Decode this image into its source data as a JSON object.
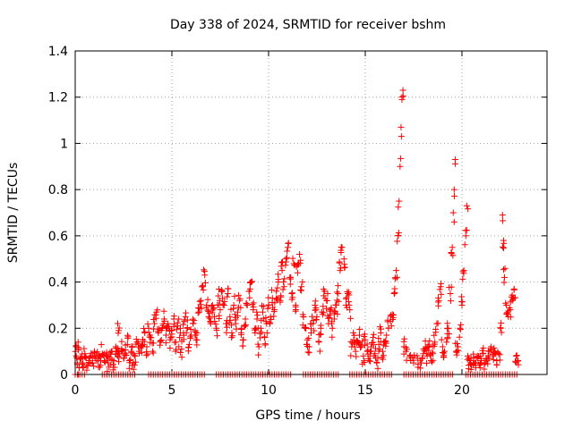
{
  "chart_data": {
    "type": "scatter",
    "title": "Day 338 of 2024, SRMTID for receiver bshm",
    "xlabel": "GPS time / hours",
    "ylabel": "SRMTID / TECUs",
    "xlim": [
      0,
      24.4
    ],
    "ylim": [
      0,
      1.4
    ],
    "xticks": [
      0,
      5,
      10,
      15,
      20
    ],
    "xtick_labels": [
      "0",
      "5",
      "10",
      "15",
      "20"
    ],
    "yticks": [
      0,
      0.2,
      0.4,
      0.6,
      0.8,
      1.0,
      1.2,
      1.4
    ],
    "ytick_labels": [
      "0",
      "0.2",
      "0.4",
      "0.6",
      "0.8",
      "1",
      "1.2",
      "1.4"
    ],
    "grid": true,
    "marker": "+",
    "color": "#ff0000",
    "series": [
      {
        "name": "SRMTID",
        "points": [
          [
            0.05,
            0.12
          ],
          [
            0.1,
            0.05
          ],
          [
            0.15,
            0.14
          ],
          [
            0.2,
            0.03
          ],
          [
            0.3,
            0.07
          ],
          [
            0.4,
            0.05
          ],
          [
            0.5,
            0.09
          ],
          [
            0.6,
            0.04
          ],
          [
            0.7,
            0.06
          ],
          [
            0.8,
            0.08
          ],
          [
            0.9,
            0.05
          ],
          [
            1.0,
            0.1
          ],
          [
            1.1,
            0.06
          ],
          [
            1.2,
            0.07
          ],
          [
            1.3,
            0.04
          ],
          [
            1.4,
            0.09
          ],
          [
            1.5,
            0.06
          ],
          [
            1.6,
            0.08
          ],
          [
            1.7,
            0.05
          ],
          [
            1.8,
            0.07
          ],
          [
            1.9,
            0.1
          ],
          [
            2.0,
            0.06
          ],
          [
            2.1,
            0.12
          ],
          [
            2.2,
            0.08
          ],
          [
            2.25,
            0.19
          ],
          [
            2.3,
            0.09
          ],
          [
            2.4,
            0.11
          ],
          [
            2.5,
            0.07
          ],
          [
            2.6,
            0.09
          ],
          [
            2.7,
            0.13
          ],
          [
            2.8,
            0.06
          ],
          [
            2.9,
            0.1
          ],
          [
            3.0,
            0.05
          ],
          [
            3.1,
            0.08
          ],
          [
            3.2,
            0.14
          ],
          [
            3.3,
            0.1
          ],
          [
            3.4,
            0.12
          ],
          [
            3.5,
            0.15
          ],
          [
            3.6,
            0.18
          ],
          [
            3.7,
            0.12
          ],
          [
            3.8,
            0.2
          ],
          [
            3.9,
            0.16
          ],
          [
            4.0,
            0.1
          ],
          [
            4.1,
            0.22
          ],
          [
            4.2,
            0.27
          ],
          [
            4.3,
            0.18
          ],
          [
            4.4,
            0.14
          ],
          [
            4.5,
            0.2
          ],
          [
            4.6,
            0.24
          ],
          [
            4.7,
            0.17
          ],
          [
            4.8,
            0.22
          ],
          [
            4.9,
            0.15
          ],
          [
            5.0,
            0.19
          ],
          [
            5.1,
            0.24
          ],
          [
            5.2,
            0.14
          ],
          [
            5.3,
            0.21
          ],
          [
            5.4,
            0.16
          ],
          [
            5.5,
            0.11
          ],
          [
            5.6,
            0.18
          ],
          [
            5.7,
            0.25
          ],
          [
            5.8,
            0.2
          ],
          [
            5.9,
            0.13
          ],
          [
            6.0,
            0.17
          ],
          [
            6.1,
            0.22
          ],
          [
            6.2,
            0.19
          ],
          [
            6.3,
            0.15
          ],
          [
            6.4,
            0.27
          ],
          [
            6.5,
            0.32
          ],
          [
            6.6,
            0.38
          ],
          [
            6.7,
            0.43
          ],
          [
            6.8,
            0.3
          ],
          [
            6.9,
            0.25
          ],
          [
            7.0,
            0.22
          ],
          [
            7.1,
            0.3
          ],
          [
            7.2,
            0.25
          ],
          [
            7.3,
            0.2
          ],
          [
            7.4,
            0.34
          ],
          [
            7.5,
            0.28
          ],
          [
            7.6,
            0.36
          ],
          [
            7.7,
            0.3
          ],
          [
            7.8,
            0.22
          ],
          [
            7.9,
            0.35
          ],
          [
            8.0,
            0.25
          ],
          [
            8.1,
            0.18
          ],
          [
            8.2,
            0.3
          ],
          [
            8.3,
            0.22
          ],
          [
            8.4,
            0.27
          ],
          [
            8.5,
            0.32
          ],
          [
            8.6,
            0.2
          ],
          [
            8.7,
            0.15
          ],
          [
            8.8,
            0.24
          ],
          [
            8.9,
            0.3
          ],
          [
            9.0,
            0.36
          ],
          [
            9.1,
            0.4
          ],
          [
            9.2,
            0.28
          ],
          [
            9.3,
            0.18
          ],
          [
            9.4,
            0.24
          ],
          [
            9.5,
            0.12
          ],
          [
            9.6,
            0.2
          ],
          [
            9.7,
            0.27
          ],
          [
            9.8,
            0.16
          ],
          [
            9.9,
            0.22
          ],
          [
            10.0,
            0.3
          ],
          [
            10.1,
            0.25
          ],
          [
            10.2,
            0.33
          ],
          [
            10.3,
            0.28
          ],
          [
            10.4,
            0.36
          ],
          [
            10.5,
            0.4
          ],
          [
            10.6,
            0.32
          ],
          [
            10.7,
            0.45
          ],
          [
            10.8,
            0.38
          ],
          [
            10.9,
            0.5
          ],
          [
            11.0,
            0.55
          ],
          [
            11.1,
            0.42
          ],
          [
            11.2,
            0.35
          ],
          [
            11.3,
            0.48
          ],
          [
            11.4,
            0.3
          ],
          [
            11.5,
            0.44
          ],
          [
            11.6,
            0.52
          ],
          [
            11.7,
            0.38
          ],
          [
            11.8,
            0.25
          ],
          [
            11.9,
            0.2
          ],
          [
            12.0,
            0.15
          ],
          [
            12.1,
            0.12
          ],
          [
            12.2,
            0.18
          ],
          [
            12.3,
            0.22
          ],
          [
            12.4,
            0.3
          ],
          [
            12.5,
            0.25
          ],
          [
            12.6,
            0.14
          ],
          [
            12.7,
            0.2
          ],
          [
            12.8,
            0.26
          ],
          [
            12.9,
            0.36
          ],
          [
            13.0,
            0.32
          ],
          [
            13.1,
            0.22
          ],
          [
            13.2,
            0.28
          ],
          [
            13.3,
            0.2
          ],
          [
            13.4,
            0.24
          ],
          [
            13.5,
            0.3
          ],
          [
            13.6,
            0.35
          ],
          [
            13.7,
            0.45
          ],
          [
            13.8,
            0.55
          ],
          [
            13.9,
            0.5
          ],
          [
            14.0,
            0.3
          ],
          [
            14.1,
            0.35
          ],
          [
            14.2,
            0.28
          ],
          [
            14.3,
            0.12
          ],
          [
            14.4,
            0.15
          ],
          [
            14.5,
            0.1
          ],
          [
            14.6,
            0.14
          ],
          [
            14.7,
            0.17
          ],
          [
            14.8,
            0.12
          ],
          [
            14.9,
            0.08
          ],
          [
            15.0,
            0.15
          ],
          [
            15.1,
            0.1
          ],
          [
            15.2,
            0.06
          ],
          [
            15.3,
            0.12
          ],
          [
            15.4,
            0.16
          ],
          [
            15.5,
            0.09
          ],
          [
            15.6,
            0.05
          ],
          [
            15.7,
            0.13
          ],
          [
            15.8,
            0.18
          ],
          [
            15.9,
            0.1
          ],
          [
            16.0,
            0.14
          ],
          [
            16.1,
            0.17
          ],
          [
            16.2,
            0.2
          ],
          [
            16.3,
            0.23
          ],
          [
            16.4,
            0.26
          ],
          [
            16.5,
            0.35
          ],
          [
            16.6,
            0.45
          ],
          [
            16.7,
            0.6
          ],
          [
            16.75,
            0.75
          ],
          [
            16.8,
            0.9
          ],
          [
            16.85,
            1.07
          ],
          [
            16.9,
            1.2
          ],
          [
            16.95,
            1.23
          ],
          [
            17.0,
            0.12
          ],
          [
            17.1,
            0.1
          ],
          [
            17.3,
            0.08
          ],
          [
            17.5,
            0.05
          ],
          [
            17.7,
            0.07
          ],
          [
            17.9,
            0.05
          ],
          [
            18.0,
            0.09
          ],
          [
            18.1,
            0.11
          ],
          [
            18.2,
            0.08
          ],
          [
            18.3,
            0.12
          ],
          [
            18.4,
            0.06
          ],
          [
            18.5,
            0.09
          ],
          [
            18.6,
            0.14
          ],
          [
            18.7,
            0.22
          ],
          [
            18.8,
            0.32
          ],
          [
            18.9,
            0.38
          ],
          [
            19.0,
            0.12
          ],
          [
            19.1,
            0.1
          ],
          [
            19.2,
            0.14
          ],
          [
            19.3,
            0.2
          ],
          [
            19.4,
            0.35
          ],
          [
            19.5,
            0.55
          ],
          [
            19.55,
            0.7
          ],
          [
            19.6,
            0.8
          ],
          [
            19.65,
            0.93
          ],
          [
            19.7,
            0.1
          ],
          [
            19.8,
            0.12
          ],
          [
            19.9,
            0.2
          ],
          [
            20.0,
            0.3
          ],
          [
            20.1,
            0.45
          ],
          [
            20.2,
            0.6
          ],
          [
            20.25,
            0.73
          ],
          [
            20.3,
            0.08
          ],
          [
            20.4,
            0.06
          ],
          [
            20.5,
            0.04
          ],
          [
            20.6,
            0.07
          ],
          [
            20.7,
            0.05
          ],
          [
            20.8,
            0.08
          ],
          [
            20.9,
            0.04
          ],
          [
            21.0,
            0.06
          ],
          [
            21.1,
            0.09
          ],
          [
            21.2,
            0.05
          ],
          [
            21.3,
            0.07
          ],
          [
            21.4,
            0.1
          ],
          [
            21.5,
            0.12
          ],
          [
            21.6,
            0.08
          ],
          [
            21.7,
            0.1
          ],
          [
            21.8,
            0.06
          ],
          [
            21.9,
            0.09
          ],
          [
            22.0,
            0.2
          ],
          [
            22.1,
            0.69
          ],
          [
            22.15,
            0.58
          ],
          [
            22.2,
            0.42
          ],
          [
            22.3,
            0.3
          ],
          [
            22.4,
            0.25
          ],
          [
            22.5,
            0.28
          ],
          [
            22.6,
            0.32
          ],
          [
            22.7,
            0.37
          ],
          [
            22.8,
            0.08
          ],
          [
            22.9,
            0.06
          ]
        ]
      }
    ],
    "zero_runs": [
      [
        0.0,
        0.5
      ],
      [
        1.4,
        3.2
      ],
      [
        3.8,
        6.8
      ],
      [
        7.3,
        11.2
      ],
      [
        11.8,
        13.6
      ],
      [
        14.2,
        16.4
      ],
      [
        17.0,
        19.6
      ],
      [
        20.2,
        22.9
      ]
    ]
  }
}
